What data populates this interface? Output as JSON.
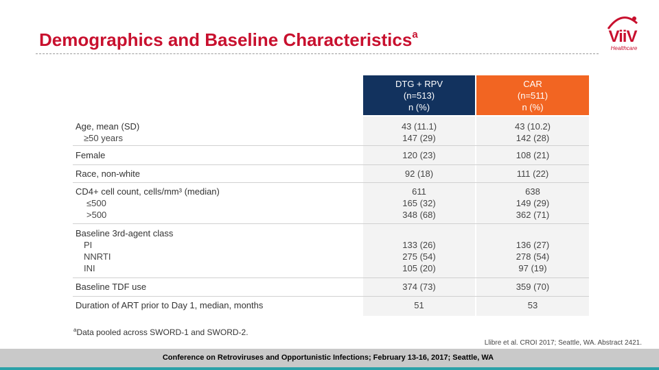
{
  "title": {
    "text": "Demographics and Baseline Characteristics",
    "superscript": "a"
  },
  "logo": {
    "name": "ViiV",
    "tagline": "Healthcare"
  },
  "columns": [
    {
      "line1": "DTG + RPV",
      "line2": "(n=513)",
      "line3": "n (%)",
      "color": "#12325e"
    },
    {
      "line1": "CAR",
      "line2": "(n=511)",
      "line3": "n (%)",
      "color": "#f26522"
    }
  ],
  "rows": [
    {
      "label": "Age, mean (SD)",
      "sublabels": [
        "≥50 years"
      ],
      "dtg": [
        "43 (11.1)",
        "147 (29)"
      ],
      "car": [
        "43 (10.2)",
        "142 (28)"
      ]
    },
    {
      "label": "Female",
      "sublabels": [],
      "dtg": [
        "120 (23)"
      ],
      "car": [
        "108 (21)"
      ]
    },
    {
      "label": "Race, non-white",
      "sublabels": [],
      "dtg": [
        "92 (18)"
      ],
      "car": [
        "111 (22)"
      ]
    },
    {
      "label": "CD4+ cell count, cells/mm³ (median)",
      "sublabels": [
        "≤500",
        ">500"
      ],
      "dtg": [
        "611",
        "165 (32)",
        "348 (68)"
      ],
      "car": [
        "638",
        "149 (29)",
        "362 (71)"
      ]
    },
    {
      "label": "Baseline 3rd-agent class",
      "sublabels": [
        "PI",
        "NNRTI",
        "INI"
      ],
      "dtg": [
        "133 (26)",
        "275 (54)",
        "105 (20)"
      ],
      "car": [
        "136 (27)",
        "278 (54)",
        "97 (19)"
      ]
    },
    {
      "label": "Baseline TDF use",
      "sublabels": [],
      "dtg": [
        "374 (73)"
      ],
      "car": [
        "359 (70)"
      ]
    },
    {
      "label": "Duration of ART prior to Day 1, median, months",
      "sublabels": [],
      "dtg": [
        "51"
      ],
      "car": [
        "53"
      ]
    }
  ],
  "footnote": {
    "marker": "a",
    "text": "Data pooled across SWORD-1 and SWORD-2."
  },
  "citation": "Llibre et al. CROI 2017; Seattle, WA. Abstract 2421.",
  "conference": "Conference on Retroviruses and Opportunistic Infections; February 13-16, 2017; Seattle, WA"
}
